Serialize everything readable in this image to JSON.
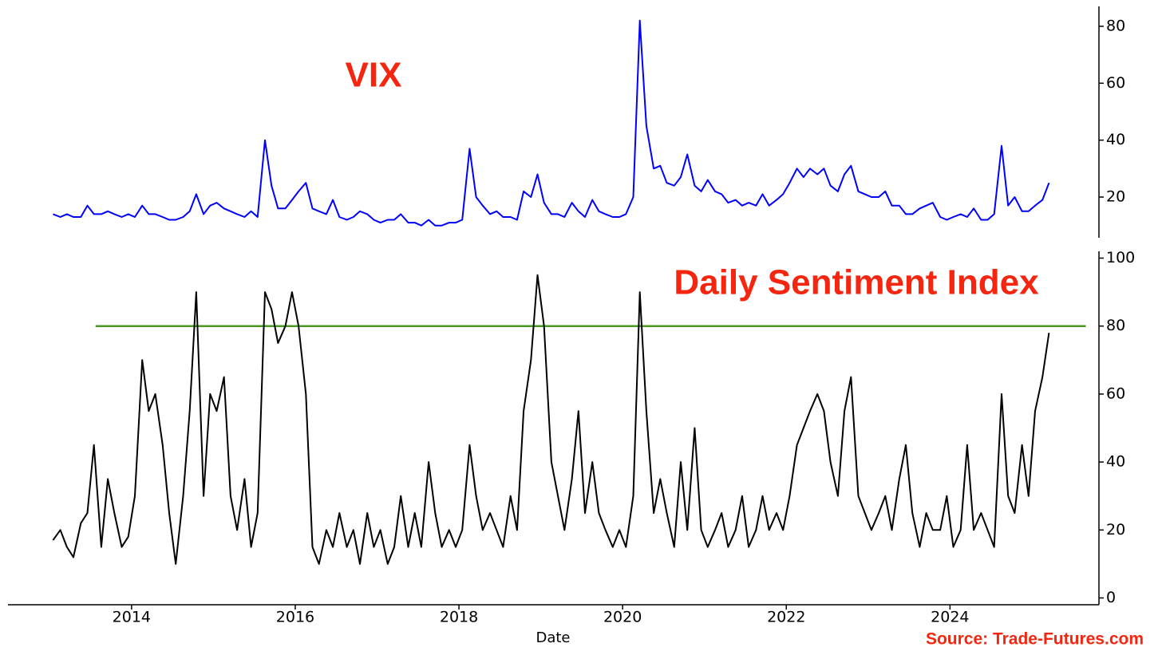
{
  "chart_data": [
    {
      "type": "line",
      "annotation": "VIX",
      "color": "#0000ff",
      "xlim": [
        2012.49,
        2025.82
      ],
      "ylim": [
        5.7,
        87
      ],
      "yticks": [
        20,
        40,
        60,
        80
      ],
      "x": [
        2013.04,
        2013.13,
        2013.21,
        2013.29,
        2013.38,
        2013.46,
        2013.54,
        2013.63,
        2013.71,
        2013.79,
        2013.88,
        2013.96,
        2014.04,
        2014.13,
        2014.21,
        2014.29,
        2014.38,
        2014.46,
        2014.54,
        2014.63,
        2014.71,
        2014.79,
        2014.88,
        2014.96,
        2015.04,
        2015.13,
        2015.21,
        2015.29,
        2015.38,
        2015.46,
        2015.54,
        2015.63,
        2015.71,
        2015.79,
        2015.88,
        2015.96,
        2016.04,
        2016.13,
        2016.21,
        2016.29,
        2016.38,
        2016.46,
        2016.54,
        2016.63,
        2016.71,
        2016.79,
        2016.88,
        2016.96,
        2017.04,
        2017.13,
        2017.21,
        2017.29,
        2017.38,
        2017.46,
        2017.54,
        2017.63,
        2017.71,
        2017.79,
        2017.88,
        2017.96,
        2018.04,
        2018.13,
        2018.21,
        2018.29,
        2018.38,
        2018.46,
        2018.54,
        2018.63,
        2018.71,
        2018.79,
        2018.88,
        2018.96,
        2019.04,
        2019.13,
        2019.21,
        2019.29,
        2019.38,
        2019.46,
        2019.54,
        2019.63,
        2019.71,
        2019.79,
        2019.88,
        2019.96,
        2020.04,
        2020.13,
        2020.21,
        2020.29,
        2020.38,
        2020.46,
        2020.54,
        2020.63,
        2020.71,
        2020.79,
        2020.88,
        2020.96,
        2021.04,
        2021.13,
        2021.21,
        2021.29,
        2021.38,
        2021.46,
        2021.54,
        2021.63,
        2021.71,
        2021.79,
        2021.88,
        2021.96,
        2022.04,
        2022.13,
        2022.21,
        2022.29,
        2022.38,
        2022.46,
        2022.54,
        2022.63,
        2022.71,
        2022.79,
        2022.88,
        2022.96,
        2023.04,
        2023.13,
        2023.21,
        2023.29,
        2023.38,
        2023.46,
        2023.54,
        2023.63,
        2023.71,
        2023.79,
        2023.88,
        2023.96,
        2024.04,
        2024.13,
        2024.21,
        2024.29,
        2024.38,
        2024.46,
        2024.54,
        2024.63,
        2024.71,
        2024.79,
        2024.88,
        2024.96,
        2025.04,
        2025.13,
        2025.21
      ],
      "values": [
        14,
        13,
        14,
        13,
        13,
        17,
        14,
        14,
        15,
        14,
        13,
        14,
        13,
        17,
        14,
        14,
        13,
        12,
        12,
        13,
        15,
        21,
        14,
        17,
        18,
        16,
        15,
        14,
        13,
        15,
        13,
        40,
        24,
        16,
        16,
        19,
        22,
        25,
        16,
        15,
        14,
        19,
        13,
        12,
        13,
        15,
        14,
        12,
        11,
        12,
        12,
        14,
        11,
        11,
        10,
        12,
        10,
        10,
        11,
        11,
        12,
        37,
        20,
        17,
        14,
        15,
        13,
        13,
        12,
        22,
        20,
        28,
        18,
        14,
        14,
        13,
        18,
        15,
        13,
        19,
        15,
        14,
        13,
        13,
        14,
        20,
        82,
        45,
        30,
        31,
        25,
        24,
        27,
        35,
        24,
        22,
        26,
        22,
        21,
        18,
        19,
        17,
        18,
        17,
        21,
        17,
        19,
        21,
        25,
        30,
        27,
        30,
        28,
        30,
        24,
        22,
        28,
        31,
        22,
        21,
        20,
        20,
        22,
        17,
        17,
        14,
        14,
        16,
        17,
        18,
        13,
        12,
        13,
        14,
        13,
        16,
        12,
        12,
        14,
        38,
        17,
        20,
        15,
        15,
        17,
        19,
        25
      ]
    },
    {
      "type": "line",
      "annotation": "Daily Sentiment Index",
      "x_label": "Date",
      "source": "Source: Trade-Futures.com",
      "color": "#000000",
      "xlim": [
        2012.49,
        2025.82
      ],
      "xticks": [
        2014,
        2016,
        2018,
        2020,
        2022,
        2024
      ],
      "ylim": [
        -2,
        102
      ],
      "yticks": [
        0,
        20,
        40,
        60,
        80,
        100
      ],
      "threshold": {
        "value": 80,
        "x": [
          2013.56,
          2025.66
        ],
        "color": "#4a9a1e"
      },
      "x": [
        2013.04,
        2013.13,
        2013.21,
        2013.29,
        2013.38,
        2013.46,
        2013.54,
        2013.63,
        2013.71,
        2013.79,
        2013.88,
        2013.96,
        2014.04,
        2014.13,
        2014.21,
        2014.29,
        2014.38,
        2014.46,
        2014.54,
        2014.63,
        2014.71,
        2014.79,
        2014.88,
        2014.96,
        2015.04,
        2015.13,
        2015.21,
        2015.29,
        2015.38,
        2015.46,
        2015.54,
        2015.63,
        2015.71,
        2015.79,
        2015.88,
        2015.96,
        2016.04,
        2016.13,
        2016.21,
        2016.29,
        2016.38,
        2016.46,
        2016.54,
        2016.63,
        2016.71,
        2016.79,
        2016.88,
        2016.96,
        2017.04,
        2017.13,
        2017.21,
        2017.29,
        2017.38,
        2017.46,
        2017.54,
        2017.63,
        2017.71,
        2017.79,
        2017.88,
        2017.96,
        2018.04,
        2018.13,
        2018.21,
        2018.29,
        2018.38,
        2018.46,
        2018.54,
        2018.63,
        2018.71,
        2018.79,
        2018.88,
        2018.96,
        2019.04,
        2019.13,
        2019.21,
        2019.29,
        2019.38,
        2019.46,
        2019.54,
        2019.63,
        2019.71,
        2019.79,
        2019.88,
        2019.96,
        2020.04,
        2020.13,
        2020.21,
        2020.29,
        2020.38,
        2020.46,
        2020.54,
        2020.63,
        2020.71,
        2020.79,
        2020.88,
        2020.96,
        2021.04,
        2021.13,
        2021.21,
        2021.29,
        2021.38,
        2021.46,
        2021.54,
        2021.63,
        2021.71,
        2021.79,
        2021.88,
        2021.96,
        2022.04,
        2022.13,
        2022.21,
        2022.29,
        2022.38,
        2022.46,
        2022.54,
        2022.63,
        2022.71,
        2022.79,
        2022.88,
        2022.96,
        2023.04,
        2023.13,
        2023.21,
        2023.29,
        2023.38,
        2023.46,
        2023.54,
        2023.63,
        2023.71,
        2023.79,
        2023.88,
        2023.96,
        2024.04,
        2024.13,
        2024.21,
        2024.29,
        2024.38,
        2024.46,
        2024.54,
        2024.63,
        2024.71,
        2024.79,
        2024.88,
        2024.96,
        2025.04,
        2025.13,
        2025.21
      ],
      "values": [
        17,
        20,
        15,
        12,
        22,
        25,
        45,
        15,
        35,
        25,
        15,
        18,
        30,
        70,
        55,
        60,
        45,
        25,
        10,
        30,
        55,
        90,
        30,
        60,
        55,
        65,
        30,
        20,
        35,
        15,
        25,
        90,
        85,
        75,
        80,
        90,
        80,
        60,
        15,
        10,
        20,
        15,
        25,
        15,
        20,
        10,
        25,
        15,
        20,
        10,
        15,
        30,
        15,
        25,
        15,
        40,
        25,
        15,
        20,
        15,
        20,
        45,
        30,
        20,
        25,
        20,
        15,
        30,
        20,
        55,
        70,
        95,
        80,
        40,
        30,
        20,
        35,
        55,
        25,
        40,
        25,
        20,
        15,
        20,
        15,
        30,
        90,
        55,
        25,
        35,
        25,
        15,
        40,
        20,
        50,
        20,
        15,
        20,
        25,
        15,
        20,
        30,
        15,
        20,
        30,
        20,
        25,
        20,
        30,
        45,
        50,
        55,
        60,
        55,
        40,
        30,
        55,
        65,
        30,
        25,
        20,
        25,
        30,
        20,
        35,
        45,
        25,
        15,
        25,
        20,
        20,
        30,
        15,
        20,
        45,
        20,
        25,
        20,
        15,
        60,
        30,
        25,
        45,
        30,
        55,
        65,
        78
      ]
    }
  ]
}
